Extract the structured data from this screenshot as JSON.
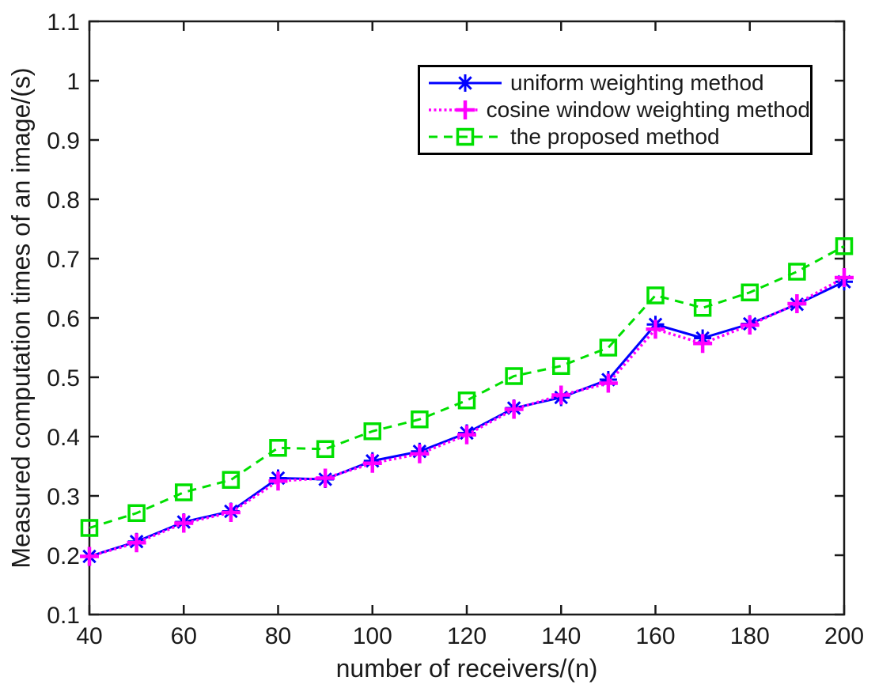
{
  "chart_data": {
    "type": "line",
    "title": "",
    "xlabel": "number of receivers/(n)",
    "ylabel": "Measured computation times of an image/(s)",
    "xlim": [
      40,
      200
    ],
    "ylim": [
      0.1,
      1.1
    ],
    "grid": "off",
    "legend_position": "upper center-right, inside plot",
    "x_ticks": [
      40,
      60,
      80,
      100,
      120,
      140,
      160,
      180,
      200
    ],
    "x_tick_labels": [
      "40",
      "60",
      "80",
      "100",
      "120",
      "140",
      "160",
      "180",
      "200"
    ],
    "y_ticks": [
      0.1,
      0.2,
      0.3,
      0.4,
      0.5,
      0.6,
      0.7,
      0.8,
      0.9,
      1.0,
      1.1
    ],
    "y_tick_labels": [
      "0.1",
      "0.2",
      "0.3",
      "0.4",
      "0.5",
      "0.6",
      "0.7",
      "0.8",
      "0.9",
      "1",
      "1.1"
    ],
    "x": [
      40,
      50,
      60,
      70,
      80,
      90,
      100,
      110,
      120,
      130,
      140,
      150,
      160,
      170,
      180,
      190,
      200
    ],
    "series": [
      {
        "name": "uniform weighting method",
        "color": "#0000ff",
        "line_style": "solid",
        "marker": "asterisk",
        "values": [
          0.198,
          0.223,
          0.256,
          0.274,
          0.33,
          0.328,
          0.359,
          0.375,
          0.406,
          0.448,
          0.466,
          0.496,
          0.589,
          0.566,
          0.59,
          0.623,
          0.661
        ]
      },
      {
        "name": "cosine window weighting method",
        "color": "#ff00ff",
        "line_style": "dotted",
        "marker": "plus",
        "values": [
          0.198,
          0.221,
          0.254,
          0.272,
          0.325,
          0.33,
          0.355,
          0.371,
          0.403,
          0.446,
          0.47,
          0.49,
          0.581,
          0.557,
          0.588,
          0.624,
          0.668
        ]
      },
      {
        "name": "the proposed method",
        "color": "#00df00",
        "line_style": "dashed",
        "marker": "open-square",
        "values": [
          0.246,
          0.271,
          0.306,
          0.327,
          0.381,
          0.379,
          0.409,
          0.429,
          0.461,
          0.502,
          0.519,
          0.55,
          0.638,
          0.617,
          0.643,
          0.678,
          0.721
        ]
      }
    ]
  },
  "colors": {
    "axis": "#1a1a1a",
    "tick_text": "#1a1a1a",
    "background": "#ffffff",
    "legend_border": "#000000"
  }
}
